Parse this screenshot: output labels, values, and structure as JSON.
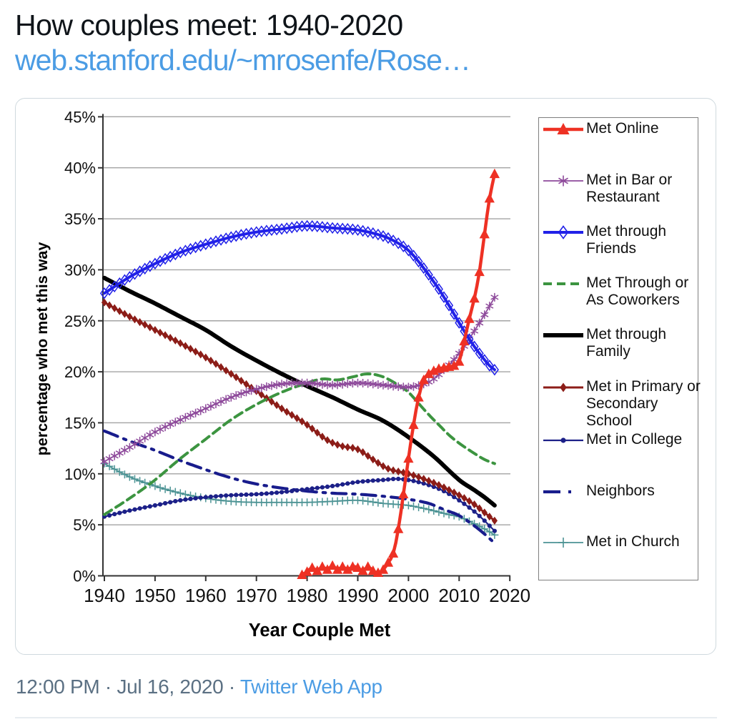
{
  "tweet": {
    "title": "How couples meet: 1940-2020",
    "link": "web.stanford.edu/~mrosenfe/Rose…",
    "time": "12:00 PM",
    "date": "Jul 16, 2020",
    "separator": "·",
    "source": "Twitter Web App",
    "colors": {
      "text": "#0f1419",
      "link": "#4b9ce4",
      "meta": "#5b7083"
    }
  },
  "chart_data": {
    "type": "line",
    "xlabel": "Year Couple Met",
    "ylabel": "percentage who met this way",
    "xlim": [
      1940,
      2020
    ],
    "ylim": [
      0,
      45
    ],
    "x_ticks": [
      1940,
      1950,
      1960,
      1970,
      1980,
      1990,
      2000,
      2010,
      2020
    ],
    "y_ticks": [
      {
        "v": 0,
        "label": "0%"
      },
      {
        "v": 5,
        "label": "5%"
      },
      {
        "v": 10,
        "label": "10%"
      },
      {
        "v": 15,
        "label": "15%"
      },
      {
        "v": 20,
        "label": "20%"
      },
      {
        "v": 25,
        "label": "25%"
      },
      {
        "v": 30,
        "label": "30%"
      },
      {
        "v": 35,
        "label": "35%"
      },
      {
        "v": 40,
        "label": "40%"
      },
      {
        "v": 45,
        "label": "45%"
      }
    ],
    "grid": "horizontal-gridlines",
    "grid_color": "#a3a3a3",
    "axis_color": "#333333",
    "legend_position": "right",
    "legend_border_color": "#7f7f7f",
    "series": [
      {
        "name": "Met Online",
        "label_lines": [
          "Met Online"
        ],
        "color": "#ee3124",
        "marker": "triangle-filled",
        "width": 4.5,
        "dash": null,
        "z": 9,
        "points": [
          [
            1979,
            0.1
          ],
          [
            1980,
            0.4
          ],
          [
            1981,
            0.8
          ],
          [
            1982,
            0.5
          ],
          [
            1983,
            0.9
          ],
          [
            1984,
            0.6
          ],
          [
            1985,
            1.0
          ],
          [
            1986,
            0.6
          ],
          [
            1987,
            0.9
          ],
          [
            1988,
            0.6
          ],
          [
            1989,
            0.9
          ],
          [
            1990,
            0.8
          ],
          [
            1991,
            0.5
          ],
          [
            1992,
            0.9
          ],
          [
            1993,
            0.5
          ],
          [
            1994,
            0.3
          ],
          [
            1995,
            0.6
          ],
          [
            1996,
            1.3
          ],
          [
            1997,
            2.2
          ],
          [
            1998,
            4.6
          ],
          [
            1999,
            8.0
          ],
          [
            2000,
            11.5
          ],
          [
            2001,
            14.8
          ],
          [
            2002,
            17.5
          ],
          [
            2003,
            19.2
          ],
          [
            2004,
            19.8
          ],
          [
            2005,
            20.1
          ],
          [
            2006,
            20.3
          ],
          [
            2007,
            20.4
          ],
          [
            2008,
            20.5
          ],
          [
            2009,
            20.6
          ],
          [
            2010,
            21.0
          ],
          [
            2011,
            23.0
          ],
          [
            2012,
            25.2
          ],
          [
            2013,
            27.2
          ],
          [
            2014,
            29.8
          ],
          [
            2015,
            33.5
          ],
          [
            2016,
            37.0
          ],
          [
            2017,
            39.4
          ]
        ]
      },
      {
        "name": "Met in Bar or Restaurant",
        "label_lines": [
          "Met in Bar or",
          "Restaurant"
        ],
        "color": "#8e4a9b",
        "marker": "asterisk",
        "width": 1.8,
        "dash": null,
        "z": 7,
        "points": [
          [
            1940,
            11.2
          ],
          [
            1945,
            12.6
          ],
          [
            1950,
            14.1
          ],
          [
            1955,
            15.3
          ],
          [
            1960,
            16.4
          ],
          [
            1965,
            17.5
          ],
          [
            1970,
            18.3
          ],
          [
            1975,
            18.8
          ],
          [
            1980,
            18.9
          ],
          [
            1985,
            18.7
          ],
          [
            1990,
            18.9
          ],
          [
            1995,
            18.7
          ],
          [
            2000,
            18.5
          ],
          [
            2003,
            18.8
          ],
          [
            2005,
            19.3
          ],
          [
            2007,
            20.2
          ],
          [
            2009,
            21.2
          ],
          [
            2011,
            22.5
          ],
          [
            2013,
            24.0
          ],
          [
            2015,
            25.6
          ],
          [
            2017,
            27.3
          ]
        ]
      },
      {
        "name": "Met through Friends",
        "label_lines": [
          "Met through",
          "Friends"
        ],
        "color": "#2121e8",
        "marker": "diamond-open",
        "width": 4,
        "dash": null,
        "z": 8,
        "points": [
          [
            1940,
            27.7
          ],
          [
            1945,
            29.3
          ],
          [
            1950,
            30.6
          ],
          [
            1955,
            31.7
          ],
          [
            1960,
            32.5
          ],
          [
            1965,
            33.2
          ],
          [
            1970,
            33.7
          ],
          [
            1975,
            34.0
          ],
          [
            1980,
            34.3
          ],
          [
            1985,
            34.1
          ],
          [
            1990,
            33.9
          ],
          [
            1995,
            33.3
          ],
          [
            1998,
            32.6
          ],
          [
            2000,
            31.9
          ],
          [
            2002,
            30.8
          ],
          [
            2004,
            29.5
          ],
          [
            2006,
            28.1
          ],
          [
            2008,
            26.5
          ],
          [
            2010,
            24.8
          ],
          [
            2012,
            23.2
          ],
          [
            2014,
            21.8
          ],
          [
            2016,
            20.6
          ],
          [
            2017,
            20.2
          ]
        ]
      },
      {
        "name": "Met Through or As Coworkers",
        "label_lines": [
          "Met Through or",
          "As Coworkers"
        ],
        "color": "#3c9440",
        "marker": "none",
        "width": 4,
        "dash": "12 7",
        "z": 6,
        "points": [
          [
            1940,
            6.0
          ],
          [
            1945,
            7.6
          ],
          [
            1950,
            9.4
          ],
          [
            1955,
            11.5
          ],
          [
            1960,
            13.4
          ],
          [
            1965,
            15.3
          ],
          [
            1970,
            16.8
          ],
          [
            1975,
            18.0
          ],
          [
            1980,
            18.9
          ],
          [
            1983,
            19.3
          ],
          [
            1986,
            19.2
          ],
          [
            1989,
            19.5
          ],
          [
            1992,
            19.8
          ],
          [
            1995,
            19.5
          ],
          [
            1998,
            18.7
          ],
          [
            2000,
            18.0
          ],
          [
            2002,
            16.9
          ],
          [
            2004,
            15.8
          ],
          [
            2006,
            14.8
          ],
          [
            2008,
            13.8
          ],
          [
            2010,
            13.0
          ],
          [
            2013,
            12.0
          ],
          [
            2015,
            11.4
          ],
          [
            2017,
            11.0
          ]
        ]
      },
      {
        "name": "Met through Family",
        "label_lines": [
          "Met through",
          "Family"
        ],
        "color": "#000000",
        "marker": "none",
        "width": 6,
        "dash": null,
        "z": 5,
        "points": [
          [
            1940,
            29.2
          ],
          [
            1945,
            27.9
          ],
          [
            1950,
            26.7
          ],
          [
            1955,
            25.4
          ],
          [
            1960,
            24.1
          ],
          [
            1965,
            22.5
          ],
          [
            1970,
            21.1
          ],
          [
            1975,
            19.8
          ],
          [
            1980,
            18.6
          ],
          [
            1985,
            17.5
          ],
          [
            1990,
            16.3
          ],
          [
            1995,
            15.2
          ],
          [
            2000,
            13.6
          ],
          [
            2005,
            11.7
          ],
          [
            2010,
            9.4
          ],
          [
            2013,
            8.4
          ],
          [
            2015,
            7.7
          ],
          [
            2017,
            6.9
          ]
        ]
      },
      {
        "name": "Met in Primary or Secondary School",
        "label_lines": [
          "Met in Primary or",
          "Secondary",
          "School"
        ],
        "color": "#8c1d18",
        "marker": "diamond-filled",
        "width": 3,
        "dash": null,
        "z": 4,
        "points": [
          [
            1940,
            26.8
          ],
          [
            1945,
            25.4
          ],
          [
            1950,
            24.1
          ],
          [
            1955,
            22.8
          ],
          [
            1960,
            21.4
          ],
          [
            1965,
            19.8
          ],
          [
            1970,
            18.1
          ],
          [
            1975,
            16.4
          ],
          [
            1980,
            14.8
          ],
          [
            1984,
            13.3
          ],
          [
            1987,
            12.7
          ],
          [
            1990,
            12.4
          ],
          [
            1993,
            11.4
          ],
          [
            1996,
            10.5
          ],
          [
            2000,
            10.0
          ],
          [
            2003,
            9.5
          ],
          [
            2006,
            8.9
          ],
          [
            2010,
            7.9
          ],
          [
            2013,
            7.0
          ],
          [
            2015,
            6.2
          ],
          [
            2017,
            5.4
          ]
        ]
      },
      {
        "name": "Met in College",
        "label_lines": [
          "Met in College"
        ],
        "color": "#1c2088",
        "marker": "circle-filled",
        "width": 2.2,
        "dash": null,
        "z": 3,
        "points": [
          [
            1940,
            5.8
          ],
          [
            1945,
            6.4
          ],
          [
            1950,
            6.9
          ],
          [
            1955,
            7.4
          ],
          [
            1960,
            7.7
          ],
          [
            1965,
            7.9
          ],
          [
            1970,
            8.0
          ],
          [
            1975,
            8.2
          ],
          [
            1980,
            8.5
          ],
          [
            1985,
            8.8
          ],
          [
            1990,
            9.2
          ],
          [
            1995,
            9.4
          ],
          [
            1998,
            9.5
          ],
          [
            2001,
            9.3
          ],
          [
            2004,
            8.9
          ],
          [
            2007,
            8.3
          ],
          [
            2010,
            7.4
          ],
          [
            2013,
            6.3
          ],
          [
            2015,
            5.4
          ],
          [
            2017,
            4.4
          ]
        ]
      },
      {
        "name": "Neighbors",
        "label_lines": [
          "Neighbors"
        ],
        "color": "#181c8c",
        "marker": "none",
        "width": 4.2,
        "dash": "20 9 3.5 9",
        "z": 2,
        "points": [
          [
            1940,
            14.2
          ],
          [
            1945,
            13.2
          ],
          [
            1950,
            12.3
          ],
          [
            1955,
            11.3
          ],
          [
            1960,
            10.4
          ],
          [
            1965,
            9.6
          ],
          [
            1970,
            9.0
          ],
          [
            1975,
            8.6
          ],
          [
            1980,
            8.3
          ],
          [
            1985,
            8.1
          ],
          [
            1990,
            8.0
          ],
          [
            1995,
            7.8
          ],
          [
            2000,
            7.5
          ],
          [
            2004,
            7.1
          ],
          [
            2007,
            6.5
          ],
          [
            2010,
            5.9
          ],
          [
            2013,
            4.9
          ],
          [
            2015,
            4.1
          ],
          [
            2017,
            3.2
          ]
        ]
      },
      {
        "name": "Met in Church",
        "label_lines": [
          "Met in Church"
        ],
        "color": "#4c9394",
        "marker": "plus",
        "width": 1.8,
        "dash": null,
        "z": 1,
        "points": [
          [
            1940,
            11.0
          ],
          [
            1945,
            9.7
          ],
          [
            1950,
            8.8
          ],
          [
            1955,
            8.1
          ],
          [
            1960,
            7.6
          ],
          [
            1965,
            7.3
          ],
          [
            1970,
            7.2
          ],
          [
            1975,
            7.2
          ],
          [
            1980,
            7.2
          ],
          [
            1985,
            7.3
          ],
          [
            1990,
            7.4
          ],
          [
            1995,
            7.1
          ],
          [
            2000,
            6.9
          ],
          [
            2004,
            6.5
          ],
          [
            2008,
            6.0
          ],
          [
            2010,
            5.8
          ],
          [
            2013,
            5.1
          ],
          [
            2015,
            4.6
          ],
          [
            2017,
            4.0
          ]
        ]
      }
    ]
  }
}
